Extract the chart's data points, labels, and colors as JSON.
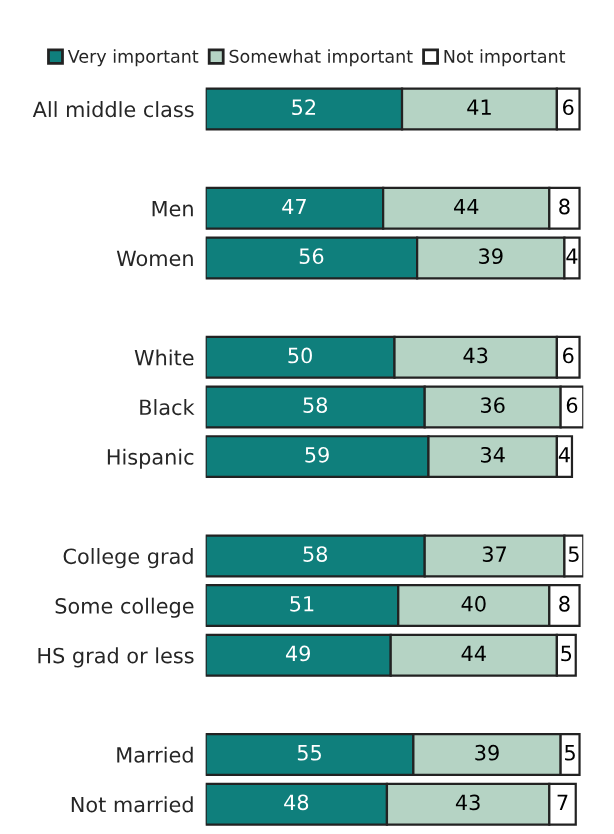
{
  "chart_data": {
    "type": "bar",
    "orientation": "horizontal",
    "stacked": true,
    "data_labels": true,
    "legend": "top",
    "grid": false,
    "categories": [
      "All middle class",
      null,
      "Men",
      "Women",
      null,
      "White",
      "Black",
      "Hispanic",
      null,
      "College grad",
      "Some college",
      "HS grad or less",
      null,
      "Married",
      "Not married"
    ],
    "series": [
      {
        "name": "Very important",
        "color": "#0f7f7c",
        "values": [
          52,
          null,
          47,
          56,
          null,
          50,
          58,
          59,
          null,
          58,
          51,
          49,
          null,
          55,
          48
        ]
      },
      {
        "name": "Somewhat important",
        "color": "#b5d3c4",
        "values": [
          41,
          null,
          44,
          39,
          null,
          43,
          36,
          34,
          null,
          37,
          40,
          44,
          null,
          39,
          43
        ]
      },
      {
        "name": "Not important",
        "color": "#ffffff",
        "values": [
          6,
          null,
          8,
          4,
          null,
          6,
          6,
          4,
          null,
          5,
          8,
          5,
          null,
          5,
          7
        ]
      }
    ]
  }
}
